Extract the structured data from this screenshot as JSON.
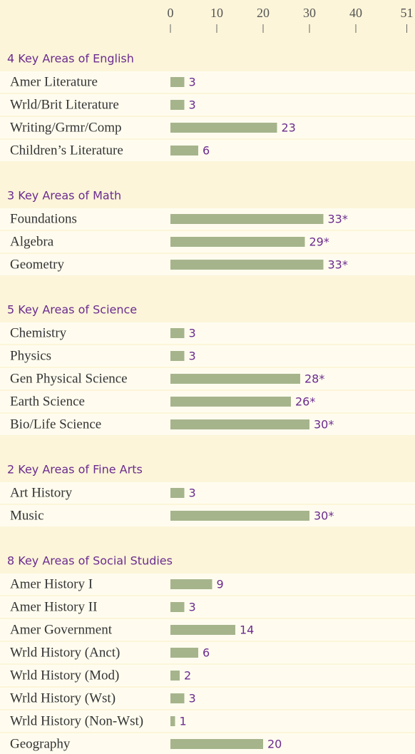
{
  "chart_data": {
    "type": "bar",
    "orientation": "horizontal",
    "color": "#a6b48c",
    "xlim": [
      0,
      51
    ],
    "xticks": [
      0,
      10,
      20,
      30,
      40,
      51
    ],
    "groups": [
      {
        "title": "4 Key Areas of English",
        "categories": [
          "Amer Literature",
          "Wrld/Brit Literature",
          "Writing/Grmr/Comp",
          "Children’s Literature"
        ],
        "values": [
          3,
          3,
          23,
          6
        ]
      },
      {
        "title": "3 Key Areas of Math",
        "categories": [
          "Foundations",
          "Algebra",
          "Geometry"
        ],
        "values": [
          33,
          29,
          33
        ],
        "value_labels": [
          "33*",
          "29*",
          "33*"
        ]
      },
      {
        "title": "5 Key Areas of Science",
        "categories": [
          "Chemistry",
          "Physics",
          "Gen Physical Science",
          "Earth Science",
          "Bio/Life Science"
        ],
        "values": [
          3,
          3,
          28,
          26,
          30
        ],
        "value_labels": [
          "3",
          "3",
          "28*",
          "26*",
          "30*"
        ]
      },
      {
        "title": "2 Key Areas of Fine Arts",
        "categories": [
          "Art History",
          "Music"
        ],
        "values": [
          3,
          30
        ],
        "value_labels": [
          "3",
          "30*"
        ]
      },
      {
        "title": "8 Key Areas of Social Studies",
        "categories": [
          "Amer History I",
          "Amer History II",
          "Amer Government",
          "Wrld History (Anct)",
          "Wrld History (Mod)",
          "Wrld History (Wst)",
          "Wrld History (Non-Wst)",
          "Geography"
        ],
        "values": [
          9,
          3,
          14,
          6,
          2,
          3,
          1,
          20
        ]
      }
    ]
  }
}
